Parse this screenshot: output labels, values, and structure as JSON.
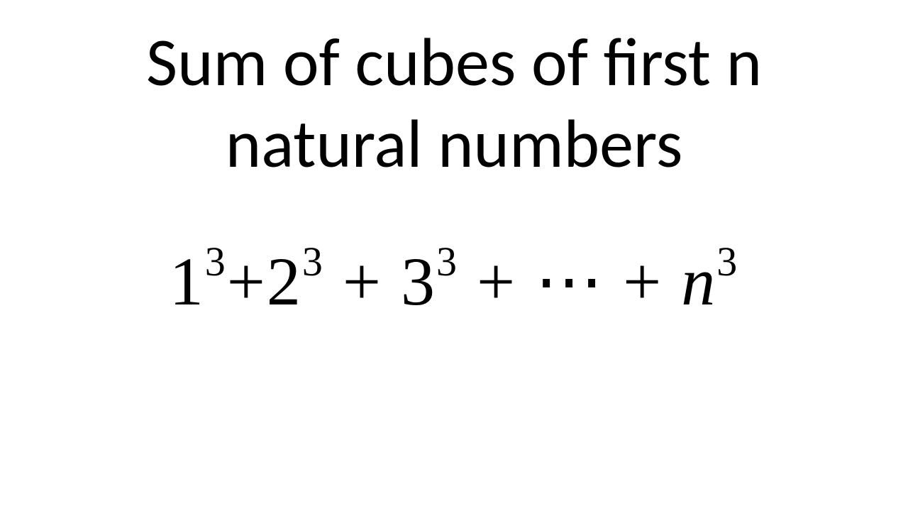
{
  "title": {
    "line1": "Sum of cubes of first n",
    "line2": "natural numbers"
  },
  "formula": {
    "term1_base": "1",
    "term1_exp": "3",
    "term2_base": "2",
    "term2_exp": "3",
    "term3_base": "3",
    "term3_exp": "3",
    "ellipsis": "⋯",
    "termN_base": "n",
    "termN_exp": "3",
    "plus": "+"
  },
  "colors": {
    "text": "#000000",
    "background": "#ffffff"
  },
  "typography": {
    "title_fontsize": 96,
    "formula_fontsize": 96,
    "sup_fontsize": 58,
    "title_font": "Calibri",
    "formula_font": "Cambria Math"
  }
}
